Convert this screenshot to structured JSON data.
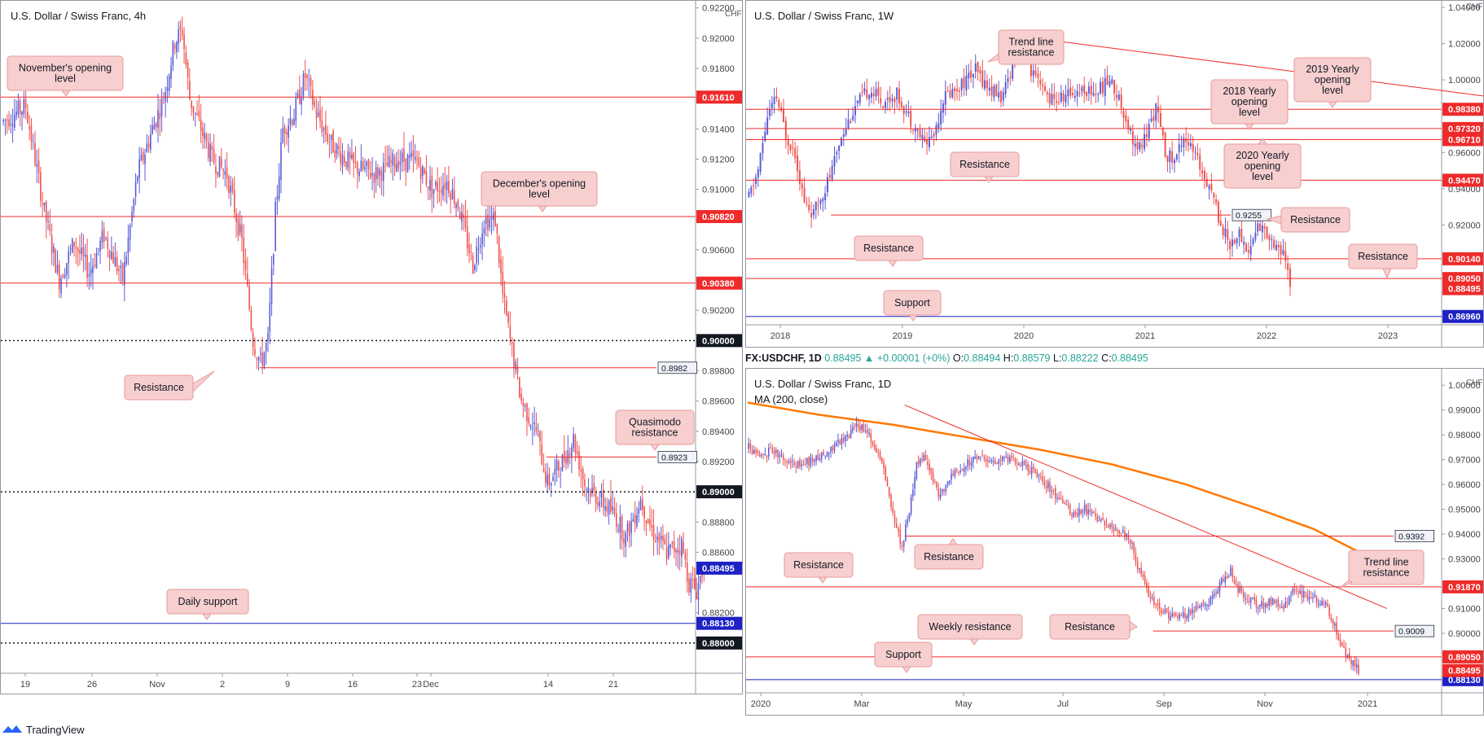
{
  "footer": {
    "brand": "TradingView"
  },
  "info_bar": {
    "symbol": "FX:USDCHF, 1D",
    "value": "0.88495",
    "change": "+0.00001 (+0%)",
    "o_label": "O:",
    "o": "0.88494",
    "h_label": "H:",
    "h": "0.88579",
    "l_label": "L:",
    "l": "0.88222",
    "c_label": "C:",
    "c": "0.88495"
  },
  "colors": {
    "up": "#5b5bd6",
    "down": "#ef5350",
    "level": "#ef2a2a",
    "support": "#1e22c4",
    "ma": "#ff7800",
    "callout_bg": "#f7cfcf",
    "callout_border": "#e79a9a"
  },
  "chart_data": [
    {
      "id": "h4",
      "type": "candlestick",
      "title": "U.S. Dollar / Swiss Franc, 4h",
      "currency": "CHF",
      "ylim": [
        0.878,
        0.9222
      ],
      "ticks": [
        {
          "v": 0.922,
          "t": "0.92200"
        },
        {
          "v": 0.92,
          "t": "0.92000"
        },
        {
          "v": 0.918,
          "t": "0.91800"
        },
        {
          "v": 0.916,
          "t": "0.91600"
        },
        {
          "v": 0.914,
          "t": "0.91400"
        },
        {
          "v": 0.912,
          "t": "0.91200"
        },
        {
          "v": 0.91,
          "t": "0.91000"
        },
        {
          "v": 0.908,
          "t": "0.90800"
        },
        {
          "v": 0.906,
          "t": "0.90600"
        },
        {
          "v": 0.904,
          "t": "0.90400"
        },
        {
          "v": 0.902,
          "t": "0.90200"
        },
        {
          "v": 0.898,
          "t": "0.89800"
        },
        {
          "v": 0.896,
          "t": "0.89600"
        },
        {
          "v": 0.894,
          "t": "0.89400"
        },
        {
          "v": 0.892,
          "t": "0.89200"
        },
        {
          "v": 0.888,
          "t": "0.88800"
        },
        {
          "v": 0.886,
          "t": "0.88600"
        },
        {
          "v": 0.882,
          "t": "0.88200"
        }
      ],
      "xlabels": [
        "19",
        "26",
        "Nov",
        "2",
        "9",
        "16",
        "23",
        "Dec",
        "14",
        "21"
      ],
      "path": [
        [
          0,
          0.9145
        ],
        [
          12,
          0.9155
        ],
        [
          22,
          0.9085
        ],
        [
          30,
          0.904
        ],
        [
          38,
          0.9065
        ],
        [
          46,
          0.9045
        ],
        [
          54,
          0.907
        ],
        [
          64,
          0.904
        ],
        [
          72,
          0.911
        ],
        [
          80,
          0.914
        ],
        [
          86,
          0.916
        ],
        [
          92,
          0.9198
        ],
        [
          96,
          0.9205
        ],
        [
          100,
          0.916
        ],
        [
          106,
          0.914
        ],
        [
          112,
          0.912
        ],
        [
          120,
          0.911
        ],
        [
          128,
          0.9065
        ],
        [
          134,
          0.9
        ],
        [
          138,
          0.8985
        ],
        [
          142,
          0.9
        ],
        [
          146,
          0.9085
        ],
        [
          150,
          0.914
        ],
        [
          156,
          0.915
        ],
        [
          162,
          0.9175
        ],
        [
          168,
          0.915
        ],
        [
          176,
          0.913
        ],
        [
          188,
          0.9115
        ],
        [
          200,
          0.911
        ],
        [
          212,
          0.912
        ],
        [
          222,
          0.9118
        ],
        [
          230,
          0.91
        ],
        [
          238,
          0.9105
        ],
        [
          244,
          0.909
        ],
        [
          252,
          0.905
        ],
        [
          258,
          0.908
        ],
        [
          264,
          0.908
        ],
        [
          268,
          0.903
        ],
        [
          272,
          0.9
        ],
        [
          278,
          0.896
        ],
        [
          286,
          0.894
        ],
        [
          292,
          0.8905
        ],
        [
          300,
          0.892
        ],
        [
          306,
          0.8935
        ],
        [
          312,
          0.8905
        ],
        [
          320,
          0.8895
        ],
        [
          328,
          0.8885
        ],
        [
          334,
          0.887
        ],
        [
          342,
          0.8895
        ],
        [
          348,
          0.8875
        ],
        [
          356,
          0.886
        ],
        [
          364,
          0.8865
        ],
        [
          368,
          0.884
        ],
        [
          372,
          0.8835
        ],
        [
          376,
          0.8852
        ]
      ],
      "levels": [
        {
          "value": 0.9161,
          "label": "0.91610",
          "style": "red"
        },
        {
          "value": 0.9082,
          "label": "0.90820",
          "style": "red"
        },
        {
          "value": 0.9038,
          "label": "0.90380",
          "style": "red"
        },
        {
          "value": 0.9,
          "label": "0.90000",
          "style": "dotted"
        },
        {
          "value": 0.8982,
          "label": "0.8982",
          "style": "red-partial",
          "from": 138
        },
        {
          "value": 0.8923,
          "label": "0.8923",
          "style": "red-partial",
          "from": 292
        },
        {
          "value": 0.89,
          "label": "0.89000",
          "style": "dotted"
        },
        {
          "value": 0.8813,
          "label": "0.88130",
          "style": "blue"
        },
        {
          "value": 0.88,
          "label": "0.88000",
          "style": "dotted"
        }
      ],
      "current": {
        "value": 0.88495,
        "label": "0.88495"
      },
      "annotations": [
        {
          "text": "November's opening level",
          "value": 0.9161
        },
        {
          "text": "December's opening level",
          "value": 0.9082
        },
        {
          "text": "Resistance",
          "value": 0.8982
        },
        {
          "text": "Quasimodo resistance",
          "value": 0.8923
        },
        {
          "text": "Daily support",
          "value": 0.8813
        }
      ]
    },
    {
      "id": "w1",
      "type": "candlestick",
      "title": "U.S. Dollar / Swiss Franc, 1W",
      "currency": "CHF",
      "ylim": [
        0.865,
        1.04
      ],
      "ticks": [
        {
          "v": 1.04,
          "t": "1.04000"
        },
        {
          "v": 1.02,
          "t": "1.02000"
        },
        {
          "v": 1.0,
          "t": "1.00000"
        },
        {
          "v": 0.96,
          "t": "0.96000"
        },
        {
          "v": 0.94,
          "t": "0.94000"
        },
        {
          "v": 0.92,
          "t": "0.92000"
        }
      ],
      "xlabels": [
        "2018",
        "2019",
        "2020",
        "2021",
        "2022",
        "2023"
      ],
      "path": [
        [
          0,
          0.935
        ],
        [
          4,
          0.95
        ],
        [
          8,
          0.98
        ],
        [
          12,
          0.99
        ],
        [
          16,
          0.97
        ],
        [
          20,
          0.96
        ],
        [
          24,
          0.932
        ],
        [
          28,
          0.926
        ],
        [
          32,
          0.938
        ],
        [
          36,
          0.95
        ],
        [
          40,
          0.97
        ],
        [
          46,
          0.985
        ],
        [
          52,
          0.995
        ],
        [
          58,
          0.988
        ],
        [
          64,
          0.992
        ],
        [
          70,
          0.978
        ],
        [
          76,
          0.965
        ],
        [
          80,
          0.97
        ],
        [
          84,
          0.99
        ],
        [
          92,
          0.998
        ],
        [
          98,
          1.005
        ],
        [
          104,
          0.995
        ],
        [
          110,
          0.99
        ],
        [
          114,
          1.01
        ],
        [
          118,
          1.023
        ],
        [
          122,
          1.005
        ],
        [
          126,
          0.995
        ],
        [
          132,
          0.988
        ],
        [
          138,
          0.992
        ],
        [
          144,
          0.995
        ],
        [
          150,
          0.993
        ],
        [
          156,
          1.0
        ],
        [
          160,
          0.99
        ],
        [
          164,
          0.975
        ],
        [
          168,
          0.96
        ],
        [
          172,
          0.97
        ],
        [
          176,
          0.985
        ],
        [
          180,
          0.96
        ],
        [
          184,
          0.955
        ],
        [
          188,
          0.97
        ],
        [
          192,
          0.96
        ],
        [
          196,
          0.95
        ],
        [
          200,
          0.94
        ],
        [
          204,
          0.92
        ],
        [
          208,
          0.91
        ],
        [
          212,
          0.915
        ],
        [
          216,
          0.905
        ],
        [
          220,
          0.92
        ],
        [
          224,
          0.915
        ],
        [
          228,
          0.91
        ],
        [
          232,
          0.9
        ],
        [
          234,
          0.885
        ]
      ],
      "levels": [
        {
          "value": 0.9838,
          "label": "0.98380",
          "style": "red"
        },
        {
          "value": 0.9732,
          "label": "0.97320",
          "style": "red"
        },
        {
          "value": 0.9671,
          "label": "0.96710",
          "style": "red"
        },
        {
          "value": 0.9447,
          "label": "0.94470",
          "style": "red"
        },
        {
          "value": 0.9255,
          "label": "0.9255",
          "style": "red-partial",
          "from": 36
        },
        {
          "value": 0.9014,
          "label": "0.90140",
          "style": "red"
        },
        {
          "value": 0.8905,
          "label": "0.89050",
          "style": "red"
        },
        {
          "value": 0.8696,
          "label": "0.86960",
          "style": "blue"
        }
      ],
      "current": {
        "value": 0.88495,
        "label": "0.88495"
      },
      "trendline": [
        [
          118,
          1.024
        ],
        [
          520,
          0.958
        ]
      ],
      "annotations": [
        {
          "text": "Trend line resistance",
          "value": 1.01
        },
        {
          "text": "2018 Yearly opening level",
          "value": 0.9732
        },
        {
          "text": "2019 Yearly opening level",
          "value": 0.9838
        },
        {
          "text": "2020 Yearly opening level",
          "value": 0.9671
        },
        {
          "text": "Resistance",
          "value": 0.9447
        },
        {
          "text": "Resistance",
          "value": 0.9255
        },
        {
          "text": "Resistance",
          "value": 0.9014
        },
        {
          "text": "Resistance",
          "value": 0.8905
        },
        {
          "text": "Support",
          "value": 0.8696
        }
      ]
    },
    {
      "id": "d1",
      "type": "candlestick",
      "title": "U.S. Dollar / Swiss Franc, 1D",
      "indicator": "MA (200, close)",
      "currency": "CHF",
      "ylim": [
        0.876,
        1.004
      ],
      "ticks": [
        {
          "v": 1.0,
          "t": "1.00000"
        },
        {
          "v": 0.99,
          "t": "0.99000"
        },
        {
          "v": 0.98,
          "t": "0.98000"
        },
        {
          "v": 0.97,
          "t": "0.97000"
        },
        {
          "v": 0.96,
          "t": "0.96000"
        },
        {
          "v": 0.95,
          "t": "0.95000"
        },
        {
          "v": 0.94,
          "t": "0.94000"
        },
        {
          "v": 0.93,
          "t": "0.93000"
        },
        {
          "v": 0.91,
          "t": "0.91000"
        },
        {
          "v": 0.9,
          "t": "0.90000"
        }
      ],
      "xlabels": [
        "2020",
        "Mar",
        "May",
        "Jul",
        "Sep",
        "Nov",
        "2021"
      ],
      "path": [
        [
          0,
          0.975
        ],
        [
          6,
          0.97
        ],
        [
          12,
          0.974
        ],
        [
          20,
          0.97
        ],
        [
          28,
          0.968
        ],
        [
          36,
          0.97
        ],
        [
          44,
          0.974
        ],
        [
          52,
          0.978
        ],
        [
          60,
          0.984
        ],
        [
          66,
          0.98
        ],
        [
          72,
          0.97
        ],
        [
          76,
          0.96
        ],
        [
          80,
          0.945
        ],
        [
          84,
          0.935
        ],
        [
          88,
          0.95
        ],
        [
          92,
          0.968
        ],
        [
          96,
          0.972
        ],
        [
          100,
          0.964
        ],
        [
          104,
          0.956
        ],
        [
          110,
          0.962
        ],
        [
          118,
          0.968
        ],
        [
          126,
          0.972
        ],
        [
          134,
          0.969
        ],
        [
          142,
          0.97
        ],
        [
          150,
          0.968
        ],
        [
          158,
          0.964
        ],
        [
          166,
          0.958
        ],
        [
          172,
          0.952
        ],
        [
          178,
          0.948
        ],
        [
          184,
          0.95
        ],
        [
          190,
          0.946
        ],
        [
          196,
          0.944
        ],
        [
          202,
          0.942
        ],
        [
          206,
          0.94
        ],
        [
          210,
          0.935
        ],
        [
          214,
          0.925
        ],
        [
          218,
          0.918
        ],
        [
          222,
          0.912
        ],
        [
          228,
          0.908
        ],
        [
          234,
          0.906
        ],
        [
          240,
          0.908
        ],
        [
          246,
          0.91
        ],
        [
          252,
          0.912
        ],
        [
          258,
          0.92
        ],
        [
          264,
          0.925
        ],
        [
          268,
          0.918
        ],
        [
          274,
          0.914
        ],
        [
          280,
          0.911
        ],
        [
          286,
          0.913
        ],
        [
          292,
          0.91
        ],
        [
          298,
          0.917
        ],
        [
          304,
          0.916
        ],
        [
          310,
          0.914
        ],
        [
          316,
          0.912
        ],
        [
          320,
          0.905
        ],
        [
          324,
          0.896
        ],
        [
          328,
          0.89
        ],
        [
          332,
          0.887
        ],
        [
          334,
          0.8849
        ]
      ],
      "ma200": [
        [
          0,
          0.993
        ],
        [
          40,
          0.988
        ],
        [
          80,
          0.984
        ],
        [
          120,
          0.979
        ],
        [
          160,
          0.974
        ],
        [
          200,
          0.968
        ],
        [
          240,
          0.96
        ],
        [
          280,
          0.95
        ],
        [
          310,
          0.942
        ],
        [
          334,
          0.933
        ]
      ],
      "levels": [
        {
          "value": 0.9392,
          "label": "0.9392",
          "style": "red-partial",
          "from": 86
        },
        {
          "value": 0.9187,
          "label": "0.91870",
          "style": "red"
        },
        {
          "value": 0.9009,
          "label": "0.9009",
          "style": "red-partial",
          "from": 222
        },
        {
          "value": 0.8905,
          "label": "0.89050",
          "style": "red"
        },
        {
          "value": 0.8813,
          "label": "0.88130",
          "style": "blue"
        }
      ],
      "current": {
        "value": 0.88495,
        "label": "0.88495"
      },
      "trendline": [
        [
          86,
          0.992
        ],
        [
          350,
          0.91
        ]
      ],
      "annotations": [
        {
          "text": "Resistance",
          "value": 0.9392
        },
        {
          "text": "Resistance",
          "value": 0.9187
        },
        {
          "text": "Trend line resistance",
          "value": 0.915
        },
        {
          "text": "Resistance",
          "value": 0.9009
        },
        {
          "text": "Weekly resistance",
          "value": 0.8905
        },
        {
          "text": "Support",
          "value": 0.8813
        }
      ]
    }
  ]
}
